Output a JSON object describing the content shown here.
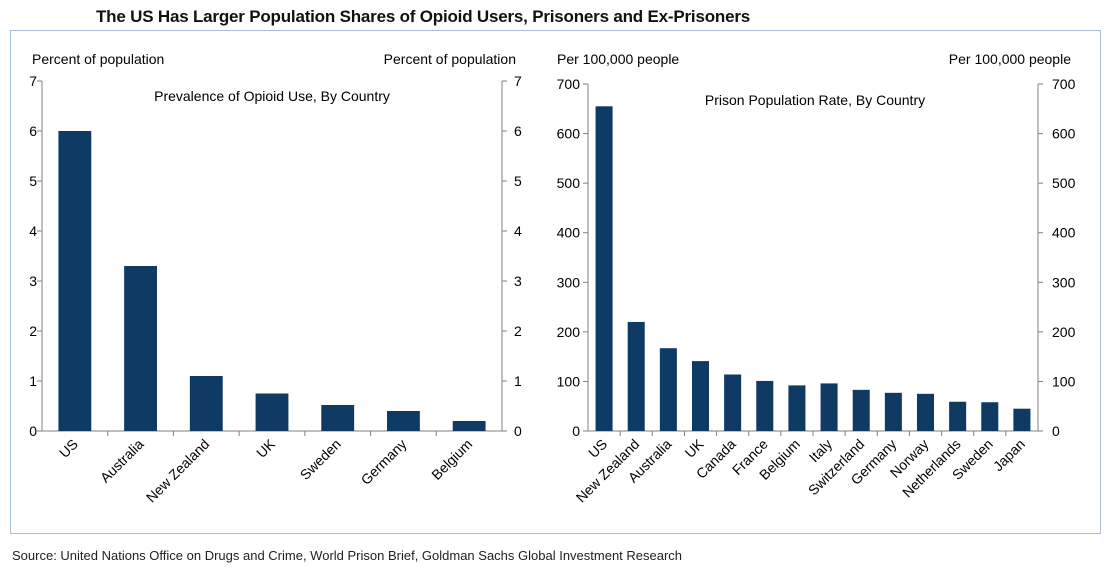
{
  "title": "The US Has Larger Population Shares of Opioid Users, Prisoners and Ex-Prisoners",
  "source": "Source: United Nations Office on Drugs and Crime, World Prison Brief, Goldman Sachs Global Investment Research",
  "colors": {
    "bar": "#0e3a63",
    "frame": "#a9bfd6"
  },
  "chart_data": [
    {
      "type": "bar",
      "title": "Prevalence  of Opioid Use, By Country",
      "left_axis_label": "Percent of population",
      "right_axis_label": "Percent of population",
      "ylim": [
        0,
        7
      ],
      "yticks": [
        0,
        1,
        2,
        3,
        4,
        5,
        6,
        7
      ],
      "categories": [
        "US",
        "Australia",
        "New Zealand",
        "UK",
        "Sweden",
        "Germany",
        "Belgium"
      ],
      "values": [
        6.0,
        3.3,
        1.1,
        0.75,
        0.52,
        0.4,
        0.2
      ],
      "grid": false
    },
    {
      "type": "bar",
      "title": "Prison Population Rate, By Country",
      "left_axis_label": "Per 100,000  people",
      "right_axis_label": "Per 100,000  people",
      "ylim": [
        0,
        700
      ],
      "yticks": [
        0,
        100,
        200,
        300,
        400,
        500,
        600,
        700
      ],
      "categories": [
        "US",
        "New Zealand",
        "Australia",
        "UK",
        "Canada",
        "France",
        "Belgium",
        "Italy",
        "Switzerland",
        "Germany",
        "Norway",
        "Netherlands",
        "Sweden",
        "Japan"
      ],
      "values": [
        655,
        220,
        167,
        141,
        114,
        101,
        92,
        96,
        83,
        77,
        75,
        59,
        58,
        45
      ],
      "grid": false
    }
  ]
}
